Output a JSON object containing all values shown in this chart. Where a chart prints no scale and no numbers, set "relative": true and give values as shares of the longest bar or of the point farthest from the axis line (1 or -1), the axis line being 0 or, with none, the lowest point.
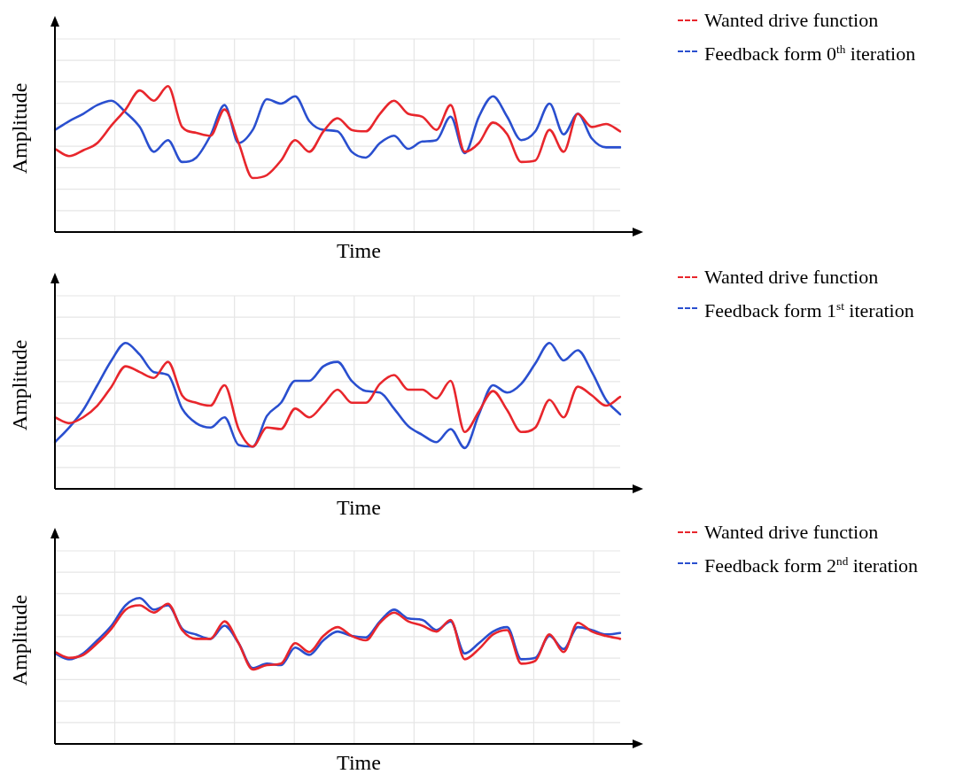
{
  "chart_data": [
    {
      "type": "line",
      "xlabel": "Time",
      "ylabel": "Amplitude",
      "relative": true,
      "grid": true,
      "legend": "top right",
      "marker": "none",
      "categories": [
        null,
        null,
        null,
        null,
        null,
        null,
        null,
        null,
        null,
        null,
        null,
        null,
        null,
        null,
        null,
        null,
        null,
        null,
        null,
        null,
        null,
        null,
        null,
        null,
        null,
        null,
        null,
        null,
        null,
        null,
        null,
        null,
        null,
        null,
        null,
        null,
        null,
        null,
        null,
        null,
        null
      ],
      "series": [
        {
          "name": "Wanted drive function",
          "color": "#e8262c",
          "values": [
            0.57,
            0.52,
            0.56,
            0.61,
            0.73,
            0.84,
            0.97,
            0.9,
            1,
            0.72,
            0.68,
            0.66,
            0.84,
            0.61,
            0.37,
            0.39,
            0.49,
            0.63,
            0.55,
            0.69,
            0.78,
            0.7,
            0.69,
            0.81,
            0.9,
            0.81,
            0.79,
            0.7,
            0.87,
            0.55,
            0.61,
            0.75,
            0.67,
            0.48,
            0.49,
            0.7,
            0.55,
            0.81,
            0.72,
            0.74,
            0.69
          ]
        },
        {
          "name": "Feedback form 0$^{th}$ iteration",
          "color": "#2a4fcf",
          "values": [
            0.7,
            0.76,
            0.81,
            0.87,
            0.9,
            0.82,
            0.72,
            0.55,
            0.63,
            0.48,
            0.51,
            0.66,
            0.87,
            0.61,
            0.7,
            0.91,
            0.88,
            0.93,
            0.76,
            0.7,
            0.69,
            0.55,
            0.51,
            0.61,
            0.66,
            0.57,
            0.62,
            0.63,
            0.79,
            0.54,
            0.79,
            0.93,
            0.79,
            0.63,
            0.69,
            0.88,
            0.67,
            0.81,
            0.64,
            0.58,
            0.58
          ]
        }
      ]
    },
    {
      "type": "line",
      "xlabel": "Time",
      "ylabel": "Amplitude",
      "relative": true,
      "grid": true,
      "legend": "top right",
      "marker": "none",
      "categories": [
        null,
        null,
        null,
        null,
        null,
        null,
        null,
        null,
        null,
        null,
        null,
        null,
        null,
        null,
        null,
        null,
        null,
        null,
        null,
        null,
        null,
        null,
        null,
        null,
        null,
        null,
        null,
        null,
        null,
        null,
        null,
        null,
        null,
        null,
        null,
        null,
        null,
        null,
        null,
        null,
        null
      ],
      "series": [
        {
          "name": "Wanted drive function",
          "color": "#e8262c",
          "values": [
            0.49,
            0.45,
            0.49,
            0.57,
            0.7,
            0.84,
            0.8,
            0.76,
            0.87,
            0.64,
            0.59,
            0.57,
            0.71,
            0.41,
            0.29,
            0.42,
            0.41,
            0.55,
            0.49,
            0.58,
            0.68,
            0.59,
            0.59,
            0.72,
            0.78,
            0.68,
            0.68,
            0.62,
            0.74,
            0.39,
            0.53,
            0.67,
            0.54,
            0.39,
            0.42,
            0.61,
            0.49,
            0.7,
            0.64,
            0.57,
            0.63
          ]
        },
        {
          "name": "Feedback form 1$^{st}$ iteration",
          "color": "#2a4fcf",
          "values": [
            0.32,
            0.42,
            0.54,
            0.71,
            0.88,
            1,
            0.92,
            0.8,
            0.78,
            0.55,
            0.45,
            0.42,
            0.49,
            0.3,
            0.29,
            0.5,
            0.59,
            0.74,
            0.74,
            0.84,
            0.87,
            0.74,
            0.67,
            0.66,
            0.55,
            0.43,
            0.37,
            0.32,
            0.41,
            0.28,
            0.51,
            0.71,
            0.66,
            0.72,
            0.86,
            1,
            0.88,
            0.95,
            0.8,
            0.61,
            0.51
          ]
        }
      ]
    },
    {
      "type": "line",
      "xlabel": "Time",
      "ylabel": "Amplitude",
      "relative": true,
      "grid": true,
      "legend": "top right",
      "marker": "none",
      "categories": [
        null,
        null,
        null,
        null,
        null,
        null,
        null,
        null,
        null,
        null,
        null,
        null,
        null,
        null,
        null,
        null,
        null,
        null,
        null,
        null,
        null,
        null,
        null,
        null,
        null,
        null,
        null,
        null,
        null,
        null,
        null,
        null,
        null,
        null,
        null,
        null,
        null,
        null,
        null,
        null,
        null
      ],
      "series": [
        {
          "name": "Wanted drive function",
          "color": "#e8262c",
          "values": [
            0.63,
            0.59,
            0.61,
            0.69,
            0.79,
            0.92,
            0.95,
            0.9,
            0.96,
            0.78,
            0.72,
            0.72,
            0.84,
            0.69,
            0.51,
            0.54,
            0.55,
            0.69,
            0.63,
            0.74,
            0.8,
            0.74,
            0.71,
            0.83,
            0.9,
            0.84,
            0.81,
            0.77,
            0.85,
            0.58,
            0.65,
            0.75,
            0.78,
            0.55,
            0.57,
            0.75,
            0.63,
            0.83,
            0.77,
            0.74,
            0.72
          ]
        },
        {
          "name": "Feedback form 2$^{nd}$ iteration",
          "color": "#2a4fcf",
          "values": [
            0.62,
            0.58,
            0.62,
            0.71,
            0.81,
            0.95,
            1,
            0.92,
            0.95,
            0.79,
            0.75,
            0.72,
            0.81,
            0.69,
            0.52,
            0.55,
            0.54,
            0.66,
            0.61,
            0.71,
            0.77,
            0.74,
            0.73,
            0.84,
            0.92,
            0.86,
            0.85,
            0.78,
            0.84,
            0.62,
            0.69,
            0.77,
            0.8,
            0.58,
            0.59,
            0.74,
            0.65,
            0.8,
            0.78,
            0.75,
            0.76
          ]
        }
      ]
    }
  ]
}
